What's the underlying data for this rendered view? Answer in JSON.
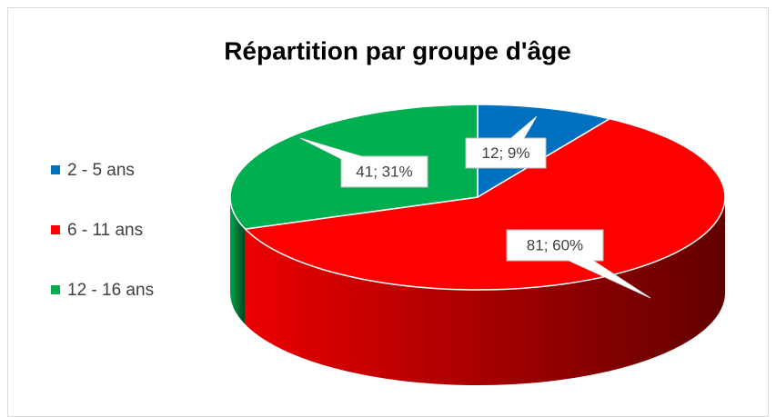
{
  "chart_data": {
    "type": "pie",
    "title": "Répartition par groupe d'âge",
    "categories": [
      "2 - 5 ans",
      "6 - 11 ans",
      "12 - 16 ans"
    ],
    "values": [
      12,
      81,
      41
    ],
    "value_labels": [
      "12; 9%",
      "81; 60%",
      "41; 31%"
    ],
    "colors": [
      "#0070c0",
      "#ff0000",
      "#00b050"
    ],
    "legend": "left",
    "three_d": true
  }
}
